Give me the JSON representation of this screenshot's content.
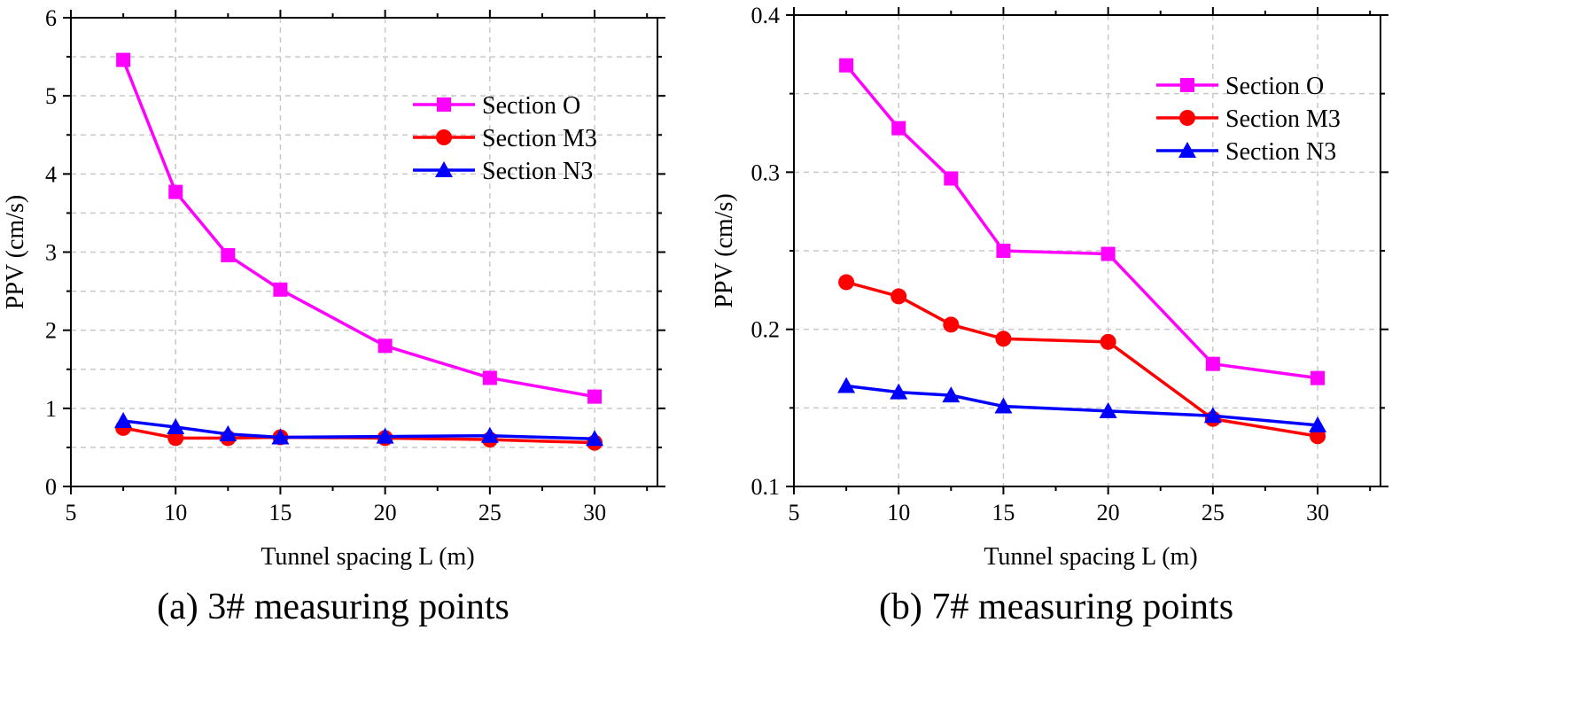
{
  "chart_data": [
    {
      "type": "line",
      "caption": "(a) 3# measuring points",
      "xlabel": "Tunnel spacing L (m)",
      "ylabel": "PPV (cm/s)",
      "xlim": [
        5,
        33
      ],
      "ylim": [
        0,
        6
      ],
      "xticks": [
        5,
        10,
        15,
        20,
        25,
        30
      ],
      "xtick_labels": [
        "5",
        "10",
        "15",
        "20",
        "25",
        "30"
      ],
      "yticks": [
        0,
        1,
        2,
        3,
        4,
        5,
        6
      ],
      "ytick_labels": [
        "0",
        "1",
        "2",
        "3",
        "4",
        "5",
        "6"
      ],
      "grid": true,
      "legend_position": "top-right",
      "x": [
        7.5,
        10,
        12.5,
        15,
        20,
        25,
        30
      ],
      "series": [
        {
          "name": "Section O",
          "color": "#ff00ff",
          "marker": "square",
          "values": [
            5.46,
            3.77,
            2.96,
            2.52,
            1.8,
            1.39,
            1.15
          ]
        },
        {
          "name": "Section M3",
          "color": "#ff0000",
          "marker": "circle",
          "values": [
            0.75,
            0.62,
            0.62,
            0.63,
            0.62,
            0.6,
            0.56
          ]
        },
        {
          "name": "Section N3",
          "color": "#0000ff",
          "marker": "triangle",
          "values": [
            0.84,
            0.76,
            0.67,
            0.63,
            0.64,
            0.65,
            0.61
          ]
        }
      ]
    },
    {
      "type": "line",
      "caption": "(b) 7# measuring points",
      "xlabel": "Tunnel spacing L (m)",
      "ylabel": "PPV (cm/s)",
      "xlim": [
        5,
        33
      ],
      "ylim": [
        0.1,
        0.4
      ],
      "xticks": [
        5,
        10,
        15,
        20,
        25,
        30
      ],
      "xtick_labels": [
        "5",
        "10",
        "15",
        "20",
        "25",
        "30"
      ],
      "yticks": [
        0.1,
        0.2,
        0.3,
        0.4
      ],
      "ytick_labels": [
        "0.1",
        "0.2",
        "0.3",
        "0.4"
      ],
      "grid": true,
      "legend_position": "top-right",
      "x": [
        7.5,
        10,
        12.5,
        15,
        20,
        25,
        30
      ],
      "series": [
        {
          "name": "Section O",
          "color": "#ff00ff",
          "marker": "square",
          "values": [
            0.368,
            0.328,
            0.296,
            0.25,
            0.248,
            0.178,
            0.169
          ]
        },
        {
          "name": "Section M3",
          "color": "#ff0000",
          "marker": "circle",
          "values": [
            0.23,
            0.221,
            0.203,
            0.194,
            0.192,
            0.143,
            0.132
          ]
        },
        {
          "name": "Section N3",
          "color": "#0000ff",
          "marker": "triangle",
          "values": [
            0.164,
            0.16,
            0.158,
            0.151,
            0.148,
            0.145,
            0.139
          ]
        }
      ]
    }
  ]
}
